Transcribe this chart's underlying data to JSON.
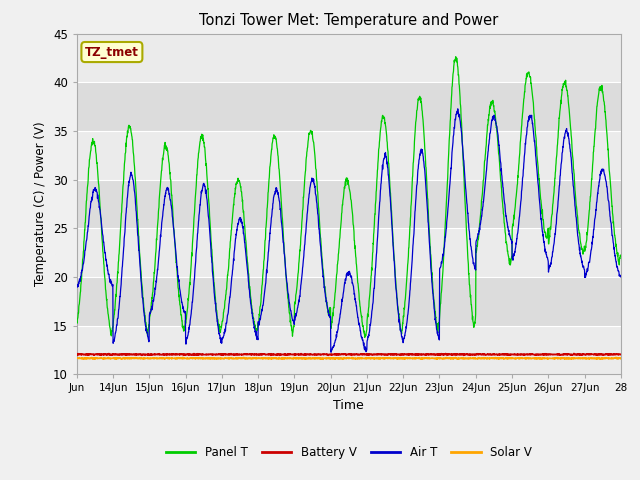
{
  "title": "Tonzi Tower Met: Temperature and Power",
  "xlabel": "Time",
  "ylabel": "Temperature (C) / Power (V)",
  "ylim": [
    10,
    45
  ],
  "yticks": [
    10,
    15,
    20,
    25,
    30,
    35,
    40,
    45
  ],
  "annotation_text": "TZ_tmet",
  "annotation_color": "#8B0000",
  "annotation_bg": "#FFFFD0",
  "annotation_edge": "#AAAA00",
  "bg_color": "#F0F0F0",
  "band_light": "#EBEBEB",
  "band_dark": "#DCDCDC",
  "grid_color": "#FFFFFF",
  "legend_items": [
    "Panel T",
    "Battery V",
    "Air T",
    "Solar V"
  ],
  "legend_colors": [
    "#00CC00",
    "#CC0000",
    "#0000CC",
    "#FFA500"
  ],
  "num_days": 15,
  "day_start": 13,
  "panel_peaks": [
    34,
    35.5,
    33.5,
    34.5,
    30,
    34.5,
    35,
    30,
    36.5,
    38.5,
    42.5,
    38,
    41,
    40,
    39.5
  ],
  "panel_troughs": [
    12.5,
    12.5,
    13,
    12.5,
    13,
    12.5,
    14.5,
    12.5,
    12.5,
    12.5,
    12.5,
    20,
    22.5,
    21,
    20
  ],
  "air_peaks": [
    29,
    30.5,
    29,
    29.5,
    26,
    29,
    30,
    20.5,
    32.5,
    33,
    37,
    36.5,
    36.5,
    35,
    31
  ],
  "air_troughs": [
    18.5,
    12.5,
    15.5,
    12.5,
    13,
    14.5,
    15,
    12,
    12.5,
    12.5,
    20,
    23,
    21,
    20,
    19.5
  ],
  "battery_v": 12.05,
  "solar_v": 11.65
}
